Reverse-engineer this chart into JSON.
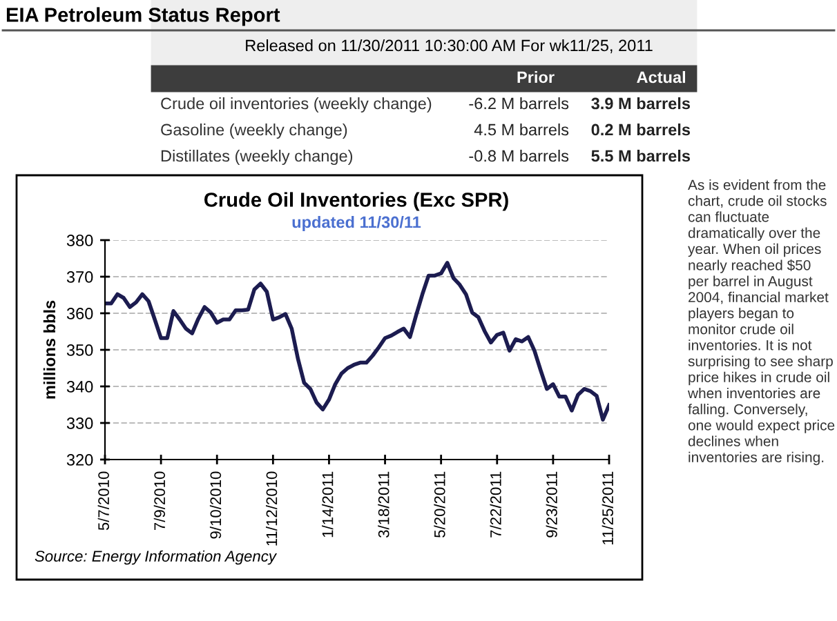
{
  "chart_data": [
    {
      "type": "other",
      "title": "EIA Petroleum Status Report",
      "subtitle": "Released on 11/30/2011 10:30:00 AM For wk11/25, 2011",
      "categories": [
        "Crude oil inventories (weekly change)",
        "Gasoline (weekly change)",
        "Distillates (weekly change)"
      ],
      "series": [
        {
          "name": "Prior",
          "values": [
            -6.2,
            4.5,
            -0.8
          ],
          "value_labels": [
            "-6.2 M barrels",
            "4.5 M barrels",
            "-0.8 M barrels"
          ]
        },
        {
          "name": "Actual",
          "values": [
            3.9,
            0.2,
            5.5
          ],
          "value_labels": [
            "3.9 M barrels",
            "0.2 M barrels",
            "5.5 M barrels"
          ]
        }
      ]
    },
    {
      "type": "line",
      "title": "Crude Oil Inventories (Exc SPR)",
      "subtitle": "updated 11/30/11",
      "ylabel": "millions bbls",
      "x": [
        "2010-05-07",
        "2010-05-14",
        "2010-05-21",
        "2010-05-28",
        "2010-06-04",
        "2010-06-11",
        "2010-06-18",
        "2010-06-25",
        "2010-07-02",
        "2010-07-09",
        "2010-07-16",
        "2010-07-23",
        "2010-07-30",
        "2010-08-06",
        "2010-08-13",
        "2010-08-20",
        "2010-08-27",
        "2010-09-03",
        "2010-09-10",
        "2010-09-17",
        "2010-09-24",
        "2010-10-01",
        "2010-10-08",
        "2010-10-15",
        "2010-10-22",
        "2010-10-29",
        "2010-11-05",
        "2010-11-12",
        "2010-11-19",
        "2010-11-26",
        "2010-12-03",
        "2010-12-10",
        "2010-12-17",
        "2010-12-24",
        "2010-12-31",
        "2011-01-07",
        "2011-01-14",
        "2011-01-21",
        "2011-01-28",
        "2011-02-04",
        "2011-02-11",
        "2011-02-18",
        "2011-02-25",
        "2011-03-04",
        "2011-03-11",
        "2011-03-18",
        "2011-03-25",
        "2011-04-01",
        "2011-04-08",
        "2011-04-15",
        "2011-04-22",
        "2011-04-29",
        "2011-05-06",
        "2011-05-13",
        "2011-05-20",
        "2011-05-27",
        "2011-06-03",
        "2011-06-10",
        "2011-06-17",
        "2011-06-24",
        "2011-07-01",
        "2011-07-08",
        "2011-07-15",
        "2011-07-22",
        "2011-07-29",
        "2011-08-05",
        "2011-08-12",
        "2011-08-19",
        "2011-08-26",
        "2011-09-02",
        "2011-09-09",
        "2011-09-16",
        "2011-09-23",
        "2011-09-30",
        "2011-10-07",
        "2011-10-14",
        "2011-10-21",
        "2011-10-28",
        "2011-11-04",
        "2011-11-11",
        "2011-11-18",
        "2011-11-25"
      ],
      "series": [
        {
          "color": "#1c1c50",
          "values": [
            362.7,
            362.7,
            365.2,
            364.2,
            361.7,
            363.0,
            365.2,
            363.3,
            358.3,
            353.2,
            353.2,
            360.6,
            358.3,
            355.8,
            354.5,
            358.5,
            361.7,
            360.2,
            357.4,
            358.3,
            358.3,
            360.8,
            360.8,
            361.0,
            366.5,
            368.1,
            365.9,
            358.3,
            358.9,
            359.8,
            355.8,
            347.6,
            341.0,
            339.3,
            335.6,
            333.7,
            336.4,
            340.6,
            343.5,
            345.0,
            345.9,
            346.5,
            346.5,
            348.4,
            350.7,
            353.2,
            353.9,
            354.9,
            355.8,
            353.5,
            359.5,
            365.2,
            370.3,
            370.3,
            370.9,
            373.8,
            369.6,
            367.8,
            365.2,
            360.2,
            358.9,
            355.1,
            352.0,
            354.1,
            354.7,
            349.8,
            352.9,
            352.3,
            353.5,
            349.8,
            344.4,
            339.3,
            340.6,
            337.2,
            337.2,
            333.4,
            337.7,
            339.3,
            338.7,
            337.4,
            330.9,
            334.9
          ]
        }
      ],
      "xlim": [
        "2010-05-07",
        "2011-11-25"
      ],
      "xticks": [
        {
          "value": "2010-05-07",
          "label": "5/7/2010"
        },
        {
          "value": "2010-07-09",
          "label": "7/9/2010"
        },
        {
          "value": "2010-09-10",
          "label": "9/10/2010"
        },
        {
          "value": "2010-11-12",
          "label": "11/12/2010"
        },
        {
          "value": "2011-01-14",
          "label": "1/14/2011"
        },
        {
          "value": "2011-03-18",
          "label": "3/18/2011"
        },
        {
          "value": "2011-05-20",
          "label": "5/20/2011"
        },
        {
          "value": "2011-07-22",
          "label": "7/22/2011"
        },
        {
          "value": "2011-09-23",
          "label": "9/23/2011"
        },
        {
          "value": "2011-11-25",
          "label": "11/25/2011"
        }
      ],
      "ylim": [
        320,
        380
      ],
      "yticks": [
        320,
        330,
        340,
        350,
        360,
        370,
        380
      ],
      "grid": "y",
      "marker": "none",
      "line_style": "solid",
      "annotations": [
        "Source: Energy Information Agency",
        "As is evident from the chart, crude oil stocks can fluctuate dramatically over the year. When oil prices nearly reached $50 per barrel in August 2004, financial market players began to monitor crude oil inventories. It is not surprising to see sharp price hikes in crude oil when inventories are falling. Conversely, one would expect price declines when inventories are rising."
      ]
    }
  ]
}
